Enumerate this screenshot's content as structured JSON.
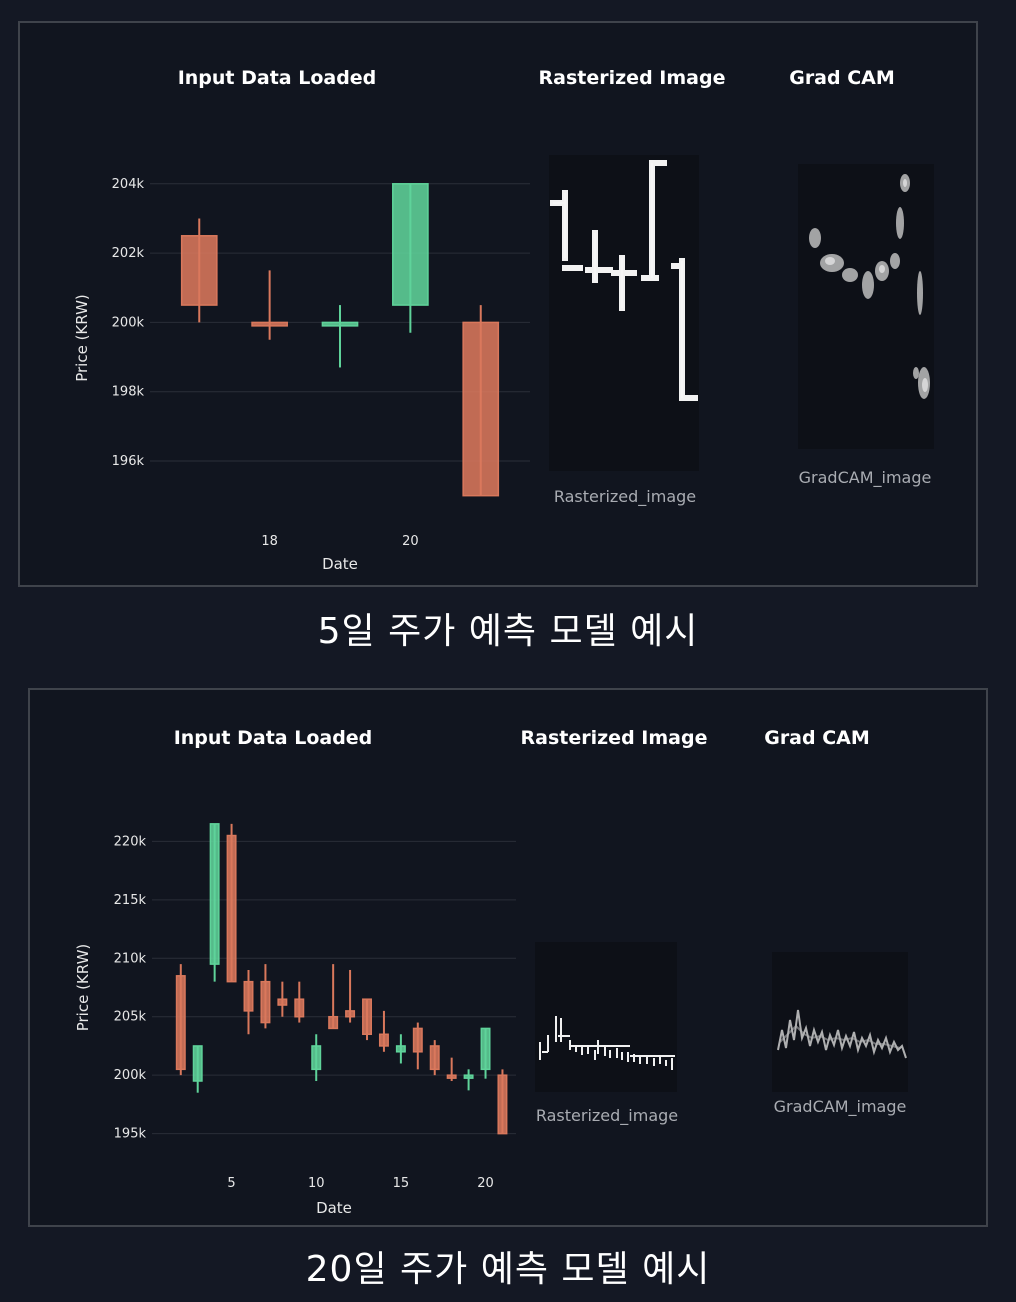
{
  "panel1": {
    "headings": {
      "input": "Input Data Loaded",
      "raster": "Rasterized Image",
      "gradcam": "Grad CAM"
    },
    "raster_label": "Rasterized_image",
    "gradcam_label": "GradCAM_image",
    "caption": "5일 주가 예측 모델 예시"
  },
  "panel2": {
    "headings": {
      "input": "Input Data Loaded",
      "raster": "Rasterized Image",
      "gradcam": "Grad CAM"
    },
    "raster_label": "Rasterized_image",
    "gradcam_label": "GradCAM_image",
    "caption": "20일 주가 예측 모델 예시"
  },
  "colors": {
    "up": "#5fd39a",
    "down": "#d9785c",
    "grid": "#2a2e38",
    "text": "#e8e8e8"
  },
  "chart_data": [
    {
      "type": "candlestick",
      "title": "Input Data Loaded",
      "xlabel": "Date",
      "ylabel": "Price (KRW)",
      "xlim": [
        16.3,
        21.7
      ],
      "ylim": [
        194500,
        204600
      ],
      "x_ticks": [
        18,
        20
      ],
      "x_tick_labels": [
        "18",
        "20"
      ],
      "y_ticks": [
        196000,
        198000,
        200000,
        202000,
        204000
      ],
      "y_tick_labels": [
        "196k",
        "198k",
        "200k",
        "202k",
        "204k"
      ],
      "candles": [
        {
          "x": 17,
          "open": 202500,
          "high": 203000,
          "low": 200000,
          "close": 200500
        },
        {
          "x": 18,
          "open": 200000,
          "high": 201500,
          "low": 199500,
          "close": 199900
        },
        {
          "x": 19,
          "open": 199900,
          "high": 200500,
          "low": 198700,
          "close": 200000
        },
        {
          "x": 20,
          "open": 200500,
          "high": 204000,
          "low": 199700,
          "close": 204000
        },
        {
          "x": 21,
          "open": 200000,
          "high": 200500,
          "low": 195000,
          "close": 195000
        }
      ]
    },
    {
      "type": "candlestick",
      "title": "Input Data Loaded",
      "xlabel": "Date",
      "ylabel": "Price (KRW)",
      "xlim": [
        0.3,
        21.8
      ],
      "ylim": [
        193000,
        222000
      ],
      "x_ticks": [
        5,
        10,
        15,
        20
      ],
      "x_tick_labels": [
        "5",
        "10",
        "15",
        "20"
      ],
      "y_ticks": [
        195000,
        200000,
        205000,
        210000,
        215000,
        220000
      ],
      "y_tick_labels": [
        "195k",
        "200k",
        "205k",
        "210k",
        "215k",
        "220k"
      ],
      "candles": [
        {
          "x": 2,
          "open": 208500,
          "high": 209500,
          "low": 200000,
          "close": 200500
        },
        {
          "x": 3,
          "open": 199500,
          "high": 202500,
          "low": 198500,
          "close": 202500
        },
        {
          "x": 4,
          "open": 209500,
          "high": 221500,
          "low": 208000,
          "close": 221500
        },
        {
          "x": 5,
          "open": 220500,
          "high": 221500,
          "low": 208000,
          "close": 208000
        },
        {
          "x": 6,
          "open": 208000,
          "high": 209000,
          "low": 203500,
          "close": 205500
        },
        {
          "x": 7,
          "open": 208000,
          "high": 209500,
          "low": 204000,
          "close": 204500
        },
        {
          "x": 8,
          "open": 206500,
          "high": 208000,
          "low": 205000,
          "close": 206000
        },
        {
          "x": 9,
          "open": 206500,
          "high": 208000,
          "low": 204500,
          "close": 205000
        },
        {
          "x": 10,
          "open": 200500,
          "high": 203500,
          "low": 199500,
          "close": 202500
        },
        {
          "x": 11,
          "open": 205000,
          "high": 209500,
          "low": 204000,
          "close": 204000
        },
        {
          "x": 12,
          "open": 205500,
          "high": 209000,
          "low": 204500,
          "close": 205000
        },
        {
          "x": 13,
          "open": 206500,
          "high": 206500,
          "low": 203000,
          "close": 203500
        },
        {
          "x": 14,
          "open": 203500,
          "high": 205500,
          "low": 202000,
          "close": 202500
        },
        {
          "x": 15,
          "open": 202000,
          "high": 203500,
          "low": 201000,
          "close": 202500
        },
        {
          "x": 16,
          "open": 204000,
          "high": 204500,
          "low": 200500,
          "close": 202000
        },
        {
          "x": 17,
          "open": 202500,
          "high": 203000,
          "low": 200000,
          "close": 200500
        },
        {
          "x": 18,
          "open": 200000,
          "high": 201500,
          "low": 199500,
          "close": 199900
        },
        {
          "x": 19,
          "open": 199900,
          "high": 200500,
          "low": 198700,
          "close": 200000
        },
        {
          "x": 20,
          "open": 200500,
          "high": 204000,
          "low": 199700,
          "close": 204000
        },
        {
          "x": 21,
          "open": 200000,
          "high": 200500,
          "low": 195000,
          "close": 195000
        }
      ]
    }
  ]
}
